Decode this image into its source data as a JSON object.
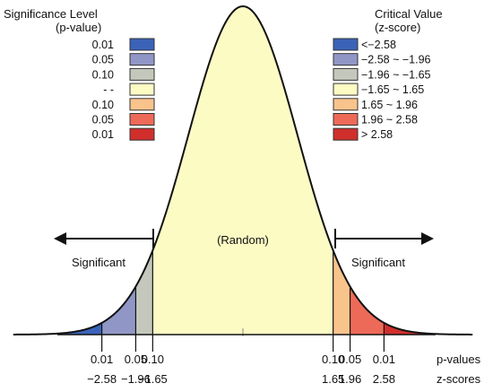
{
  "legend_left": {
    "title_line1": "Significance Level",
    "title_line2": "(p-value)",
    "rows": [
      {
        "label": "0.01",
        "color": "#3a63b8"
      },
      {
        "label": "0.05",
        "color": "#9097c6"
      },
      {
        "label": "0.10",
        "color": "#c4c8bc"
      },
      {
        "label": "- -",
        "color": "#fdfbc4"
      },
      {
        "label": "0.10",
        "color": "#f9c38c"
      },
      {
        "label": "0.05",
        "color": "#ee6a58"
      },
      {
        "label": "0.01",
        "color": "#d02f2c"
      }
    ]
  },
  "legend_right": {
    "title_line1": "Critical Value",
    "title_line2": "(z-score)",
    "rows": [
      {
        "label": "<−2.58",
        "color": "#3a63b8"
      },
      {
        "label": "−2.58 ~ −1.96",
        "color": "#9097c6"
      },
      {
        "label": "−1.96 ~ −1.65",
        "color": "#c4c8bc"
      },
      {
        "label": "−1.65 ~ 1.65",
        "color": "#fdfbc4"
      },
      {
        "label": "1.65 ~ 1.96",
        "color": "#f9c38c"
      },
      {
        "label": "1.96 ~ 2.58",
        "color": "#ee6a58"
      },
      {
        "label": "> 2.58",
        "color": "#d02f2c"
      }
    ]
  },
  "curve": {
    "center_label": "(Random)",
    "left_label": "Significant",
    "right_label": "Significant",
    "line_color": "#111111",
    "regions": [
      {
        "from": -4.2,
        "to": -2.58,
        "color": "#3a63b8"
      },
      {
        "from": -2.58,
        "to": -1.96,
        "color": "#9097c6"
      },
      {
        "from": -1.96,
        "to": -1.65,
        "color": "#c4c8bc"
      },
      {
        "from": -1.65,
        "to": 1.65,
        "color": "#fdfbc4"
      },
      {
        "from": 1.65,
        "to": 1.96,
        "color": "#f9c38c"
      },
      {
        "from": 1.96,
        "to": 2.58,
        "color": "#ee6a58"
      },
      {
        "from": 2.58,
        "to": 4.2,
        "color": "#d02f2c"
      }
    ]
  },
  "ticks": [
    {
      "z": -2.58,
      "p_label": "0.01",
      "z_label": "−2.58"
    },
    {
      "z": -1.96,
      "p_label": "0.05",
      "z_label": "−1.96"
    },
    {
      "z": -1.65,
      "p_label": "0.10",
      "z_label": "−1.65"
    },
    {
      "z": 1.65,
      "p_label": "0.10",
      "z_label": "1.65"
    },
    {
      "z": 1.96,
      "p_label": "0.05",
      "z_label": "1.96"
    },
    {
      "z": 2.58,
      "p_label": "0.01",
      "z_label": "2.58"
    }
  ],
  "axis_labels": {
    "p_values": "p-values",
    "z_scores": "z-scores"
  }
}
